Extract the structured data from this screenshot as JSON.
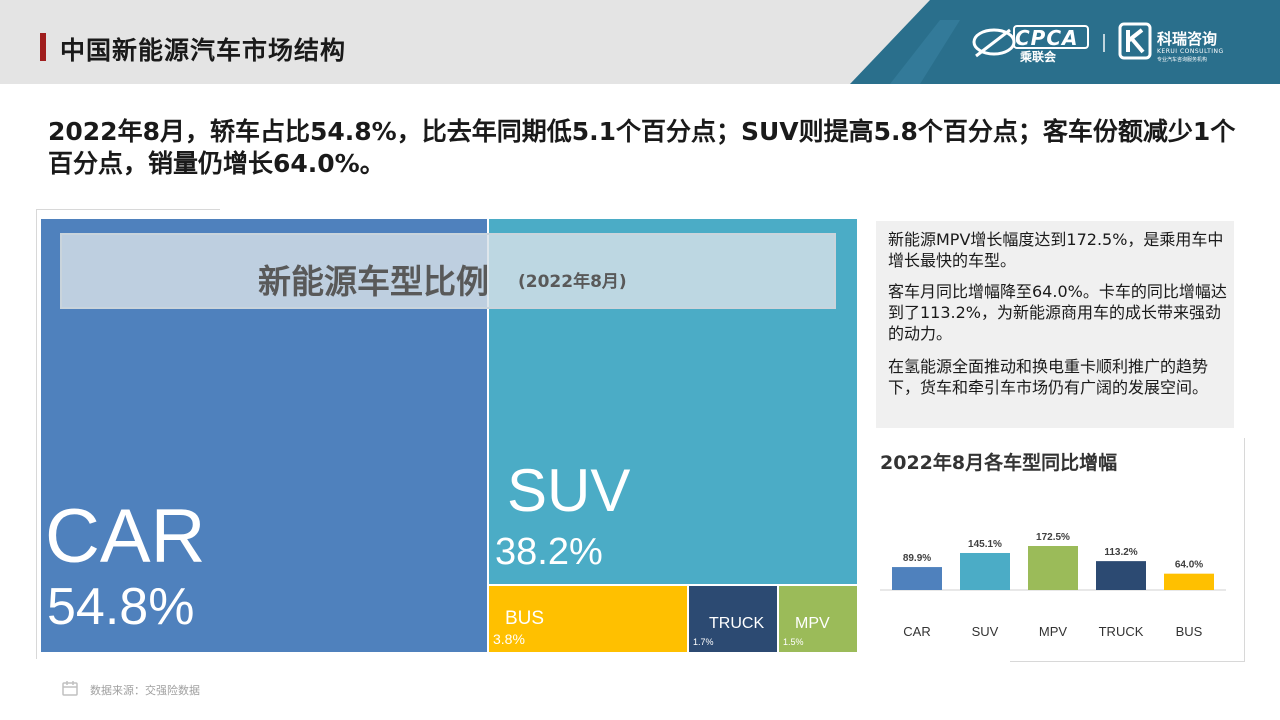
{
  "header": {
    "title": "中国新能源汽车市场结构",
    "logo_cpca": "CPCA",
    "logo_cpca_cn": "乘联会",
    "logo_kerui": "科瑞咨询",
    "logo_kerui_en": "KERUI CONSULTING",
    "logo_kerui_tagline": "专业汽车咨询服务机构",
    "colors": {
      "band": "#e4e4e4",
      "accent": "#a01e1e",
      "logo_panel": "#2a6f8c"
    }
  },
  "headline": "2022年8月，轿车占比54.8%，比去年同期低5.1个百分点；SUV则提高5.8个百分点；客车份额减少1个百分点，销量仍增长64.0%。",
  "treemap": {
    "title": "新能源车型比例",
    "subtitle": "(2022年8月)",
    "tiles": [
      {
        "name": "CAR",
        "pct": "54.8%",
        "color": "#4f81bd"
      },
      {
        "name": "SUV",
        "pct": "38.2%",
        "color": "#4bacc6"
      },
      {
        "name": "BUS",
        "pct": "3.8%",
        "color": "#ffc000"
      },
      {
        "name": "TRUCK",
        "pct": "1.7%",
        "color": "#2c4a72"
      },
      {
        "name": "MPV",
        "pct": "1.5%",
        "color": "#9bbb59"
      }
    ]
  },
  "notes": [
    "新能源MPV增长幅度达到172.5%，是乘用车中增长最快的车型。",
    "客车月同比增幅降至64.0%。卡车的同比增幅达到了113.2%，为新能源商用车的成长带来强劲的动力。",
    "在氢能源全面推动和换电重卡顺利推广的趋势下，货车和牵引车市场仍有广阔的发展空间。"
  ],
  "chart_data": [
    {
      "type": "treemap",
      "title": "新能源车型比例",
      "subtitle": "(2022年8月)",
      "categories": [
        "CAR",
        "SUV",
        "BUS",
        "TRUCK",
        "MPV"
      ],
      "values": [
        54.8,
        38.2,
        3.8,
        1.7,
        1.5
      ],
      "value_labels": [
        "54.8%",
        "38.2%",
        "3.8%",
        "1.7%",
        "1.5%"
      ],
      "colors": [
        "#4f81bd",
        "#4bacc6",
        "#ffc000",
        "#2c4a72",
        "#9bbb59"
      ]
    },
    {
      "type": "bar",
      "title": "2022年8月各车型同比增幅",
      "categories": [
        "CAR",
        "SUV",
        "MPV",
        "TRUCK",
        "BUS"
      ],
      "values": [
        89.9,
        145.1,
        172.5,
        113.2,
        64.0
      ],
      "value_labels": [
        "89.9%",
        "145.1%",
        "172.5%",
        "113.2%",
        "64.0%"
      ],
      "colors": [
        "#4f81bd",
        "#4bacc6",
        "#9bbb59",
        "#2c4a72",
        "#ffc000"
      ],
      "ylim": [
        0,
        172.5
      ],
      "grid": false,
      "legend": "none"
    }
  ],
  "footer": {
    "source": "数据来源：交强险数据"
  }
}
